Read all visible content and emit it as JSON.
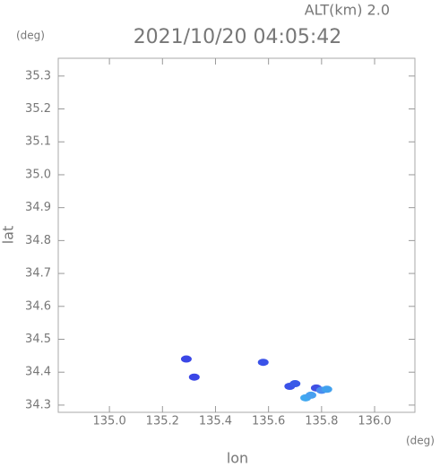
{
  "chart_data": {
    "type": "scatter",
    "header": "ALT(km) 2.0",
    "title": "2021/10/20 04:05:42",
    "y_unit": "(deg)",
    "x_unit": "(deg)",
    "xlabel": "lon",
    "ylabel": "lat",
    "x": [
      135.29,
      135.32,
      135.58,
      135.68,
      135.7,
      135.78,
      135.8,
      135.74,
      135.76,
      135.82
    ],
    "values": [
      34.44,
      34.385,
      34.43,
      34.357,
      34.365,
      34.352,
      34.345,
      34.322,
      34.33,
      34.348
    ],
    "colors": [
      "#3a46e6",
      "#3a46e6",
      "#3a52e8",
      "#3a52e8",
      "#3a5ae8",
      "#4050e4",
      "#4a8cf0",
      "#40a8f0",
      "#48a0f0",
      "#40a0ee"
    ],
    "xlim": [
      134.807,
      136.152
    ],
    "ylim": [
      34.278,
      35.354
    ],
    "xticks": [
      {
        "value": 135.0,
        "label": "135.0"
      },
      135.2,
      135.4,
      135.6,
      135.8,
      {
        "value": 136.0,
        "label": "136.0"
      }
    ],
    "yticks": [
      34.3,
      34.4,
      34.5,
      34.6,
      34.7,
      34.8,
      34.9,
      {
        "value": 35.0,
        "label": "35.0"
      },
      35.1,
      35.2,
      35.3
    ]
  }
}
